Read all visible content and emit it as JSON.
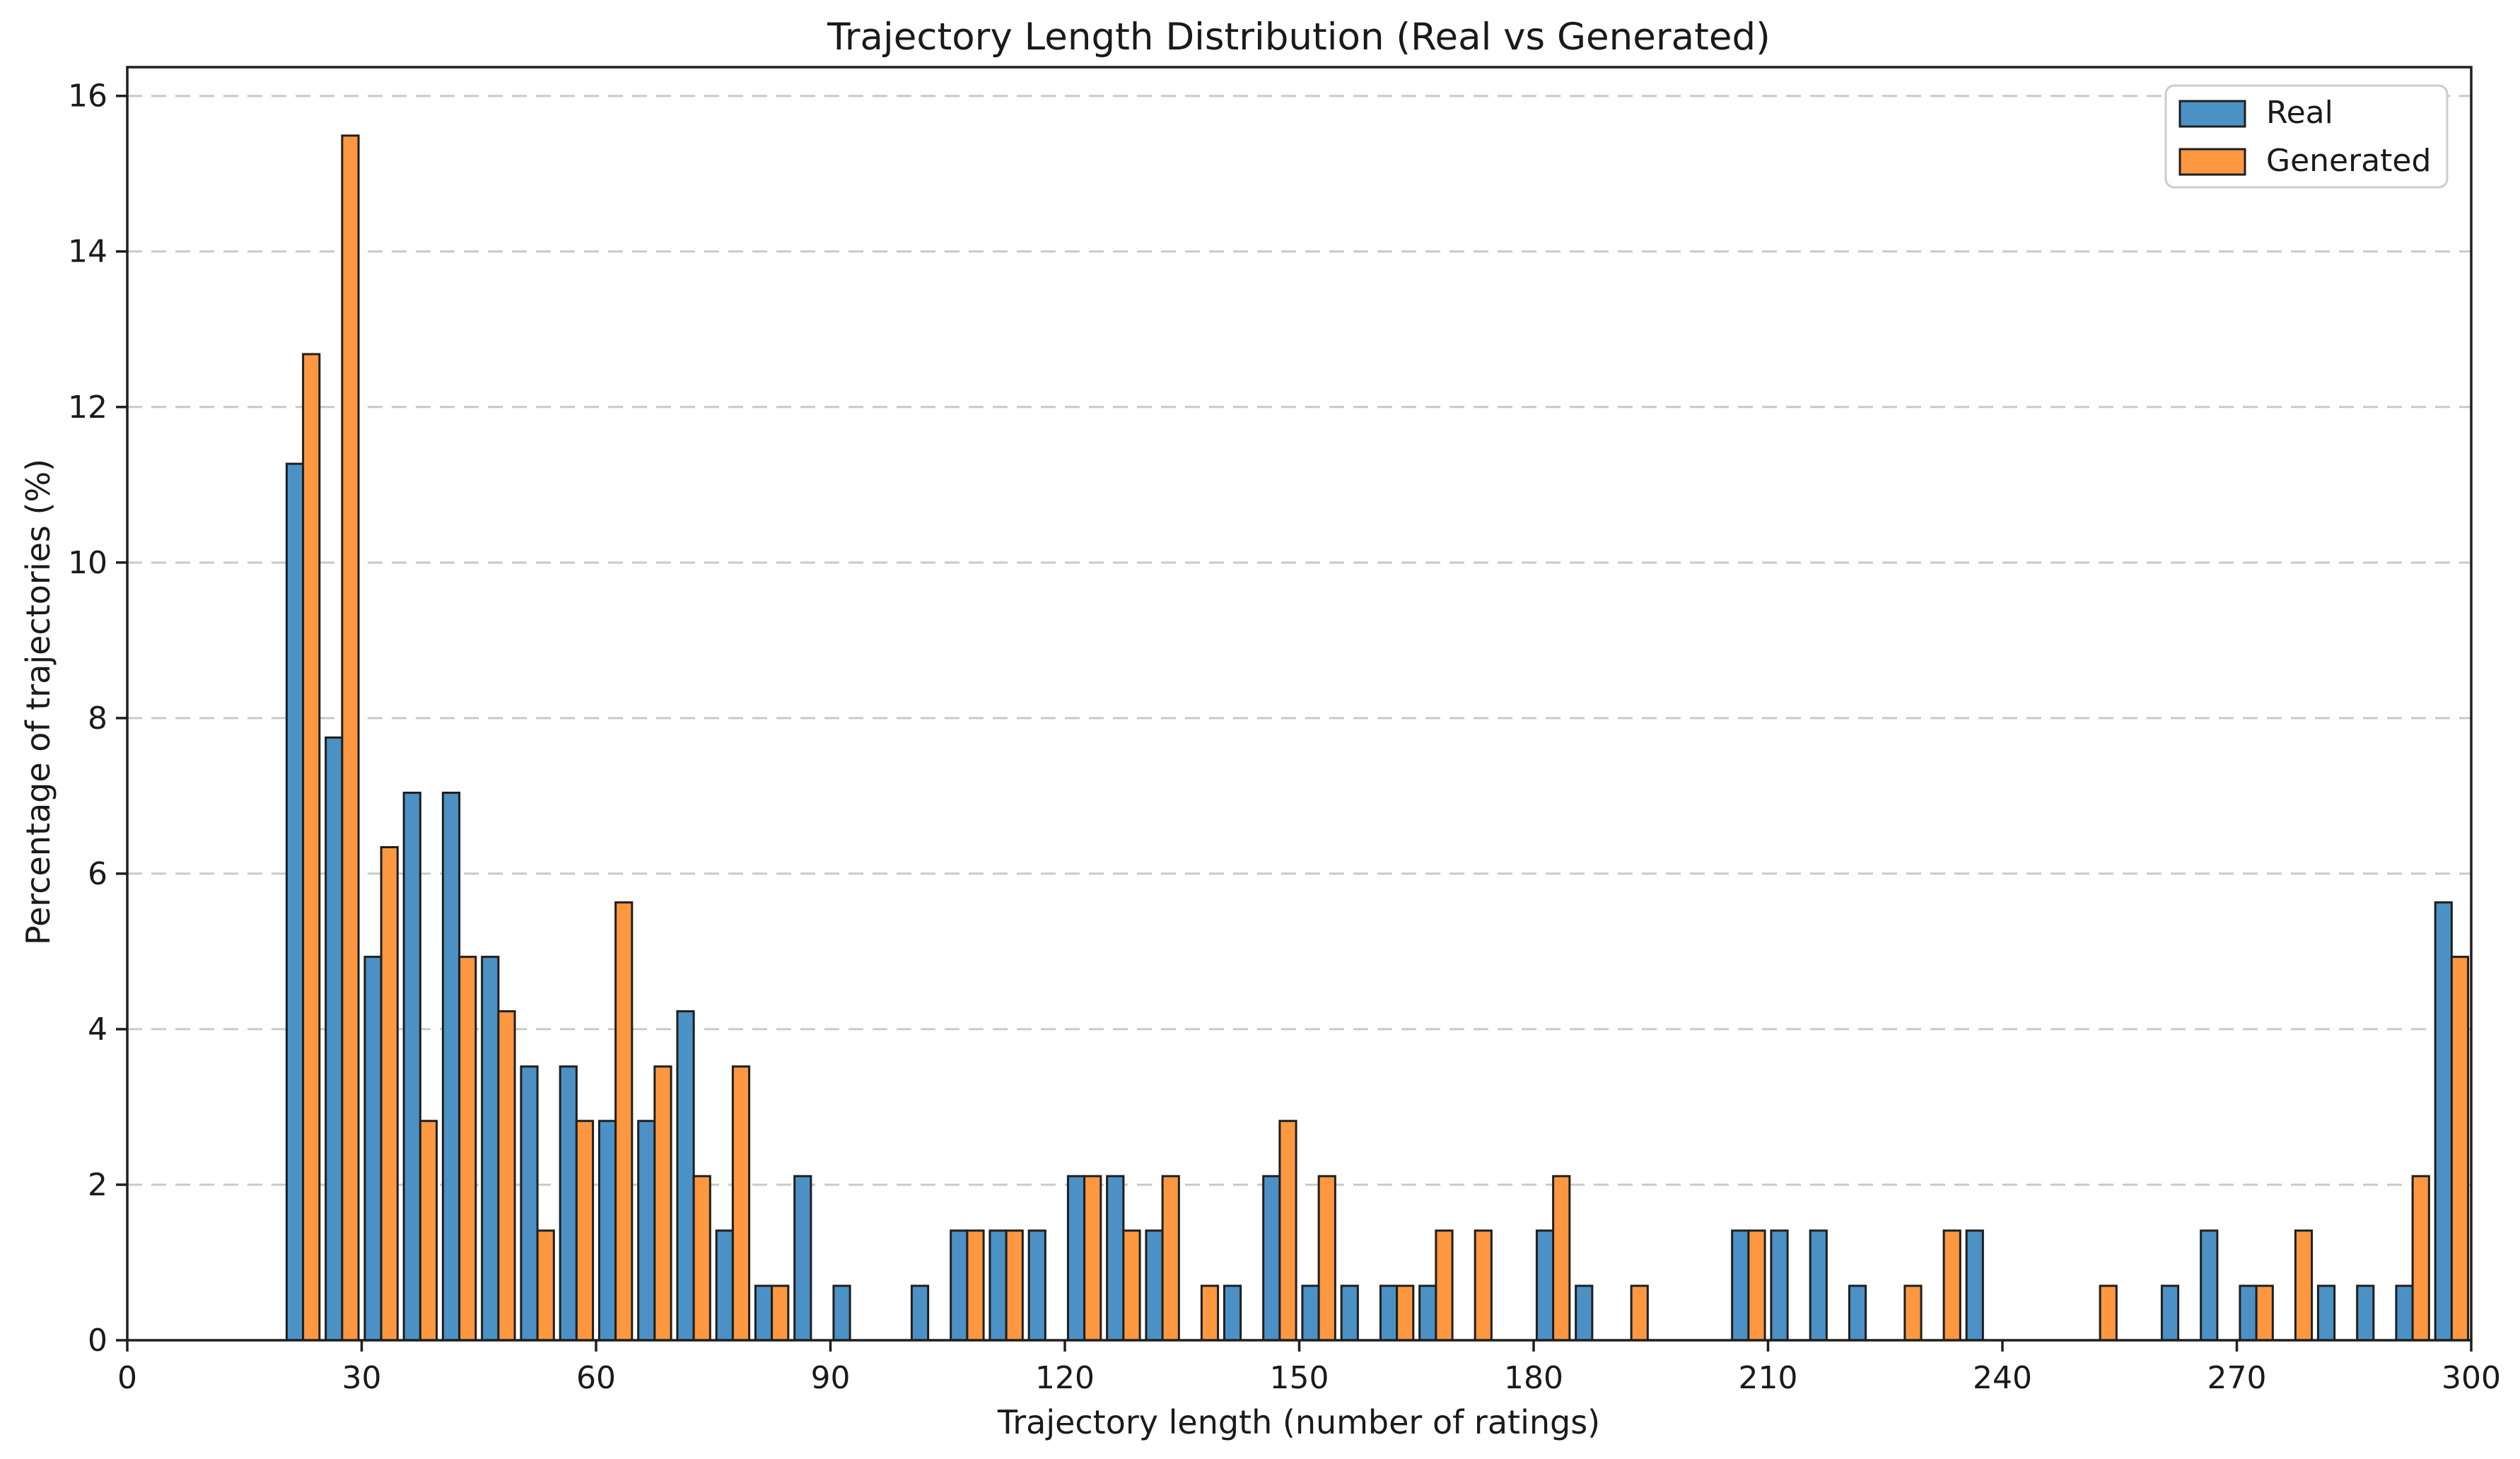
{
  "chart_data": {
    "type": "bar",
    "title": "Trajectory Length Distribution (Real vs Generated)",
    "xlabel": "Trajectory length (number of ratings)",
    "ylabel": "Percentage of trajectories (%)",
    "xlim": [
      0,
      300
    ],
    "ylim": [
      0,
      16.37
    ],
    "xticks": [
      0,
      30,
      60,
      90,
      120,
      150,
      180,
      210,
      240,
      270,
      300
    ],
    "yticks": [
      0,
      2,
      4,
      6,
      8,
      10,
      12,
      14,
      16
    ],
    "grid": "horizontal-dashed",
    "legend_position": "upper-right",
    "bin_width": 5,
    "bar_width_units": 2.1,
    "bin_starts": [
      20,
      25,
      30,
      35,
      40,
      45,
      50,
      55,
      60,
      65,
      70,
      75,
      80,
      85,
      90,
      95,
      100,
      105,
      110,
      115,
      120,
      125,
      130,
      135,
      140,
      145,
      150,
      155,
      160,
      165,
      170,
      175,
      180,
      185,
      190,
      195,
      200,
      205,
      210,
      215,
      220,
      225,
      230,
      235,
      240,
      245,
      250,
      255,
      260,
      265,
      270,
      275,
      280,
      285,
      290,
      295
    ],
    "series": [
      {
        "name": "Real",
        "color": "#4b91c5",
        "values": [
          11.27,
          7.75,
          4.93,
          7.04,
          7.04,
          4.93,
          3.52,
          3.52,
          2.82,
          2.82,
          4.23,
          1.41,
          0.7,
          2.11,
          0.7,
          0,
          0.7,
          1.41,
          1.41,
          1.41,
          2.11,
          2.11,
          1.41,
          0,
          0.7,
          2.11,
          0.7,
          0.7,
          0.7,
          0.7,
          0,
          0,
          1.41,
          0.7,
          0,
          0,
          0,
          1.41,
          1.41,
          1.41,
          0.7,
          0,
          0,
          1.41,
          0,
          0,
          0,
          0,
          0.7,
          1.41,
          0.7,
          0,
          0.7,
          0.7,
          0.7,
          5.63
        ]
      },
      {
        "name": "Generated",
        "color": "#fd9840",
        "values": [
          12.68,
          15.49,
          6.34,
          2.82,
          4.93,
          4.23,
          1.41,
          2.82,
          5.63,
          3.52,
          2.11,
          3.52,
          0.7,
          0,
          0,
          0,
          0,
          1.41,
          1.41,
          0,
          2.11,
          1.41,
          2.11,
          0.7,
          0,
          2.82,
          2.11,
          0,
          0.7,
          1.41,
          1.41,
          0,
          2.11,
          0,
          0.7,
          0,
          0,
          1.41,
          0,
          0,
          0,
          0.7,
          1.41,
          0,
          0,
          0,
          0.7,
          0,
          0,
          0,
          0.7,
          1.41,
          0,
          0,
          2.11,
          4.93
        ]
      }
    ],
    "style": {
      "bar_edge_color": "#1f1f1f",
      "grid_color": "#c9c9c9",
      "spine_color": "#1f1f1f",
      "legend_border_color": "#cccccc",
      "text_color": "#1a1a1a"
    }
  }
}
